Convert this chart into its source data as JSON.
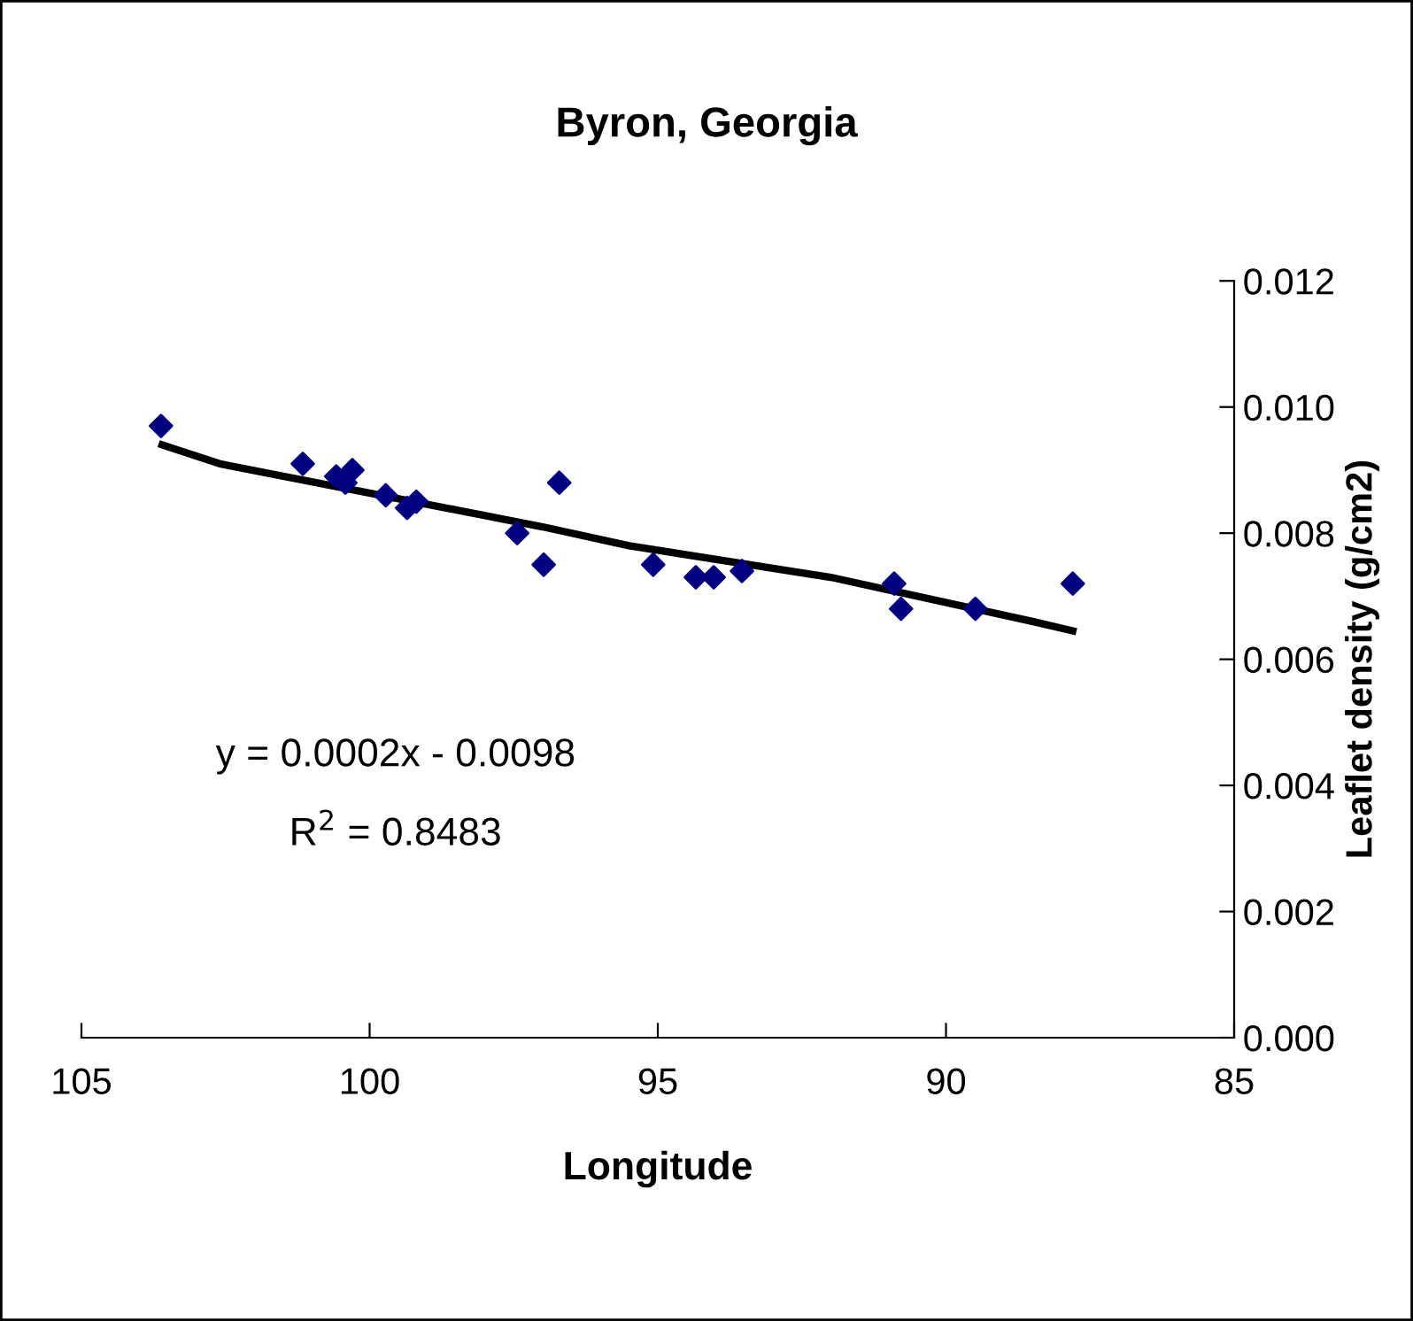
{
  "chart_data": {
    "type": "scatter",
    "title": "Byron, Georgia",
    "xlabel": "Longitude",
    "ylabel": "Leaflet density (g/cm2)",
    "xlim": [
      105,
      85
    ],
    "xticks": [
      105,
      100,
      95,
      90,
      85
    ],
    "ylim": [
      0,
      0.012
    ],
    "yticks": [
      {
        "value": 0,
        "label": "0.000"
      },
      {
        "value": 0.002,
        "label": "0.002"
      },
      {
        "value": 0.004,
        "label": "0.004"
      },
      {
        "value": 0.006,
        "label": "0.006"
      },
      {
        "value": 0.008,
        "label": "0.008"
      },
      {
        "value": 0.01,
        "label": "0.010"
      },
      {
        "value": 0.012,
        "label": "0.012"
      }
    ],
    "grid": false,
    "legend": false,
    "series": [
      {
        "marker": "diamond",
        "color": "#000080",
        "x": [
          103.62,
          101.16,
          100.58,
          100.42,
          100.3,
          99.72,
          99.35,
          99.19,
          97.44,
          96.98,
          96.71,
          95.08,
          94.34,
          94.03,
          93.54,
          90.9,
          90.78,
          89.49,
          87.8
        ],
        "values": [
          0.0097,
          0.0091,
          0.0089,
          0.0088,
          0.009,
          0.0086,
          0.0084,
          0.0085,
          0.008,
          0.0075,
          0.0088,
          0.0075,
          0.0073,
          0.0073,
          0.0074,
          0.0072,
          0.0068,
          0.0068,
          0.0072
        ]
      },
      {
        "type": "line",
        "color": "#000000",
        "line_style": "solid",
        "marker": "none",
        "x": [
          103.6,
          102.6,
          97,
          95.5,
          92,
          88.5,
          87.8
        ],
        "values": [
          0.0094,
          0.0091,
          0.0081,
          0.0078,
          0.0073,
          0.0066,
          0.00645
        ]
      }
    ],
    "annotations": [
      {
        "text": "y = 0.0002x - 0.0098"
      },
      {
        "text": "R$^{2}$ = 0.8483"
      }
    ]
  }
}
